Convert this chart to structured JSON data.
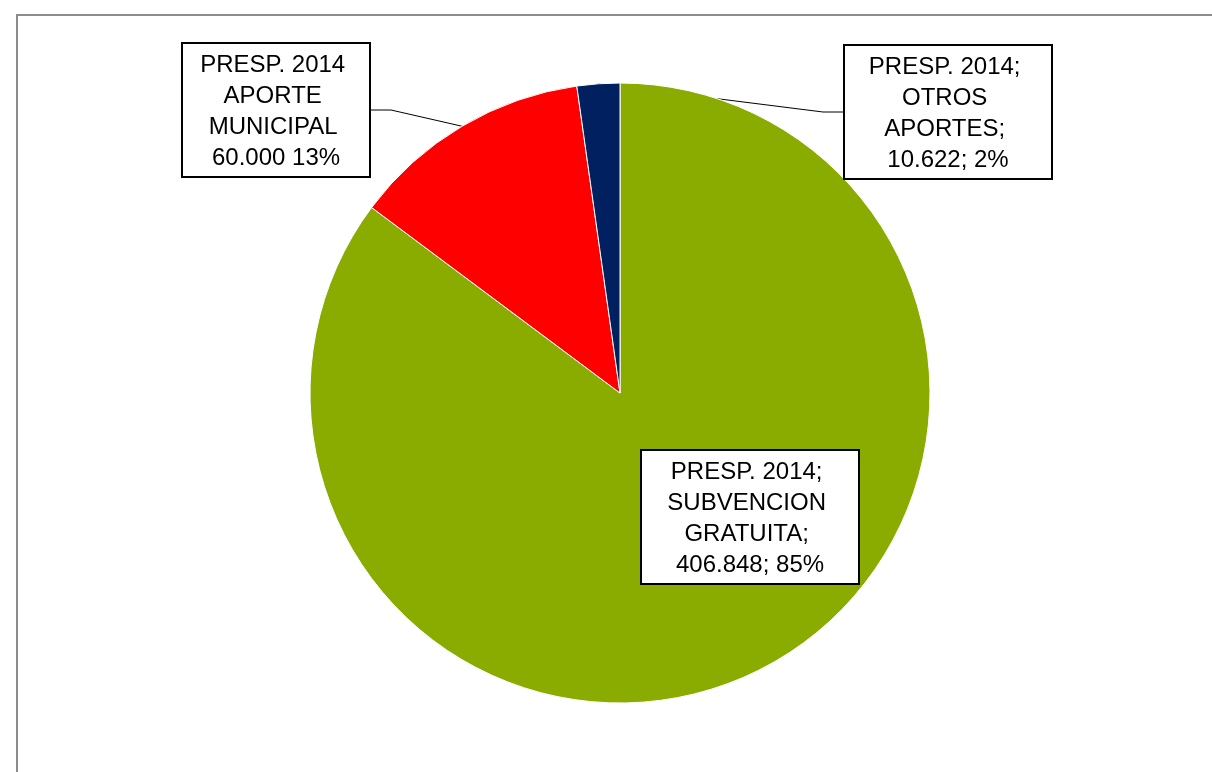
{
  "chart_data": {
    "type": "pie",
    "categories": [
      "PRESP. 2014; SUBVENCION GRATUITA",
      "PRESP. 2014 APORTE MUNICIPAL",
      "PRESP. 2014; OTROS APORTES"
    ],
    "values": [
      406848,
      60000,
      10622
    ],
    "colors": [
      "#8aac00",
      "#ff0000",
      "#002060"
    ],
    "value_labels": [
      "; 406.848; 85%",
      " 60.000 13%",
      "; 10.622; 2%"
    ],
    "legend": false
  }
}
